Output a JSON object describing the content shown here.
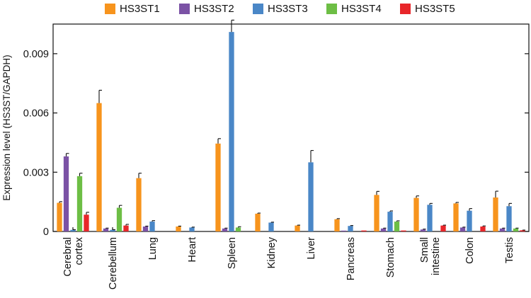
{
  "chart_data": {
    "type": "bar",
    "title": "",
    "xlabel": "",
    "ylabel": "Expression level (HS3ST/GAPDH)",
    "ylim": [
      0,
      0.0105
    ],
    "yticks": [
      0,
      0.003,
      0.006,
      0.009
    ],
    "ytick_labels": [
      "0",
      "0.003",
      "0.006",
      "0.009"
    ],
    "legend_position": "top",
    "error_bars": true,
    "categories": [
      [
        "Cerebral",
        "cortex"
      ],
      [
        "Cerebellum"
      ],
      [
        "Lung"
      ],
      [
        "Heart"
      ],
      [
        "Spleen"
      ],
      [
        "Kidney"
      ],
      [
        "Liver"
      ],
      [
        "Pancreas"
      ],
      [
        "Stomach"
      ],
      [
        "Small",
        "intestine"
      ],
      [
        "Colon"
      ],
      [
        "Testis"
      ]
    ],
    "series": [
      {
        "name": "HS3ST1",
        "color": "#F7941D",
        "values": [
          0.00145,
          0.0065,
          0.0027,
          0.00025,
          0.00445,
          0.0009,
          0.0003,
          0.00062,
          0.00185,
          0.0017,
          0.00142,
          0.00172
        ],
        "errors": [
          6e-05,
          0.00065,
          0.00025,
          2e-05,
          0.00025,
          3e-05,
          2e-05,
          3e-05,
          0.00018,
          0.0001,
          5e-05,
          0.00032
        ]
      },
      {
        "name": "HS3ST2",
        "color": "#7B52A5",
        "values": [
          0.0038,
          0.00015,
          0.00025,
          0.0,
          0.00015,
          0.0,
          0.0,
          3e-05,
          0.00015,
          0.0001,
          0.0002,
          0.00015
        ],
        "errors": [
          0.00015,
          2e-05,
          2e-05,
          0.0,
          2e-05,
          0.0,
          0.0,
          0.0,
          2e-05,
          2e-05,
          2e-05,
          2e-05
        ]
      },
      {
        "name": "HS3ST3",
        "color": "#4A87C7",
        "values": [
          8e-05,
          8e-05,
          0.0005,
          0.0002,
          0.0101,
          0.00045,
          0.0035,
          0.00028,
          0.001,
          0.00135,
          0.00105,
          0.00128
        ],
        "errors": [
          1e-05,
          1e-05,
          5e-05,
          2e-05,
          0.0006,
          2e-05,
          0.0006,
          2e-05,
          4e-05,
          7e-05,
          0.00011,
          0.00014
        ]
      },
      {
        "name": "HS3ST4",
        "color": "#6DBE45",
        "values": [
          0.0028,
          0.0012,
          0.0,
          0.0,
          0.0002,
          0.0,
          0.0,
          0.0,
          0.0005,
          0.0,
          0.0,
          0.00015
        ],
        "errors": [
          0.00015,
          0.00012,
          0.0,
          0.0,
          4e-05,
          0.0,
          0.0,
          0.0,
          4e-05,
          0.0,
          0.0,
          2e-05
        ]
      },
      {
        "name": "HS3ST5",
        "color": "#E8262A",
        "values": [
          0.00085,
          0.0003,
          0.0,
          0.0,
          0.0,
          0.0,
          0.0,
          5e-05,
          5e-05,
          0.0003,
          0.00025,
          6e-05
        ],
        "errors": [
          0.00012,
          6e-05,
          0.0,
          0.0,
          0.0,
          0.0,
          0.0,
          0.0,
          0.0,
          2e-05,
          3e-05,
          1e-05
        ]
      }
    ]
  }
}
